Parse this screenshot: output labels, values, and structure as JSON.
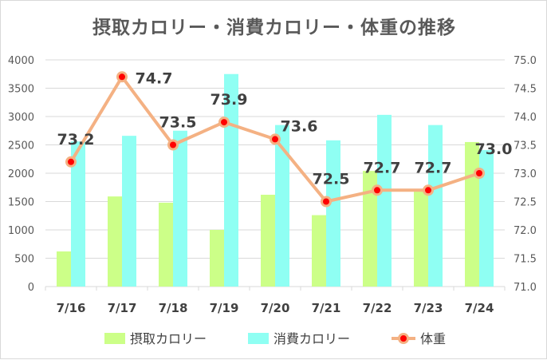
{
  "chart_data": {
    "type": "bar+line",
    "title": "摂取カロリー・消費カロリー・体重の推移",
    "categories": [
      "7/16",
      "7/17",
      "7/18",
      "7/19",
      "7/20",
      "7/21",
      "7/22",
      "7/23",
      "7/24"
    ],
    "series": [
      {
        "name": "摂取カロリー",
        "type": "bar",
        "axis": "left",
        "color": "#ccff88",
        "values": [
          620,
          1590,
          1480,
          1000,
          1620,
          1260,
          2040,
          1680,
          2550
        ]
      },
      {
        "name": "消費カロリー",
        "type": "bar",
        "axis": "left",
        "color": "#8ffff3",
        "values": [
          2560,
          2660,
          2750,
          3750,
          2850,
          2580,
          3030,
          2850,
          2410
        ]
      },
      {
        "name": "体重",
        "type": "line",
        "axis": "right",
        "color": "#f4b183",
        "marker_color": "#ff0000",
        "values": [
          73.2,
          74.7,
          73.5,
          73.9,
          73.6,
          72.5,
          72.7,
          72.7,
          73.0
        ],
        "data_labels": [
          "73.2",
          "74.7",
          "73.5",
          "73.9",
          "73.6",
          "72.5",
          "72.7",
          "72.7",
          "73.0"
        ]
      }
    ],
    "y_left": {
      "min": 0,
      "max": 4000,
      "ticks": [
        "0",
        "500",
        "1000",
        "1500",
        "2000",
        "2500",
        "3000",
        "3500",
        "4000"
      ]
    },
    "y_right": {
      "min": 71.0,
      "max": 75.0,
      "ticks": [
        "71.0",
        "71.5",
        "72.0",
        "72.5",
        "73.0",
        "73.5",
        "74.0",
        "74.5",
        "75.0"
      ]
    },
    "grid": true,
    "legend": "bottom"
  }
}
